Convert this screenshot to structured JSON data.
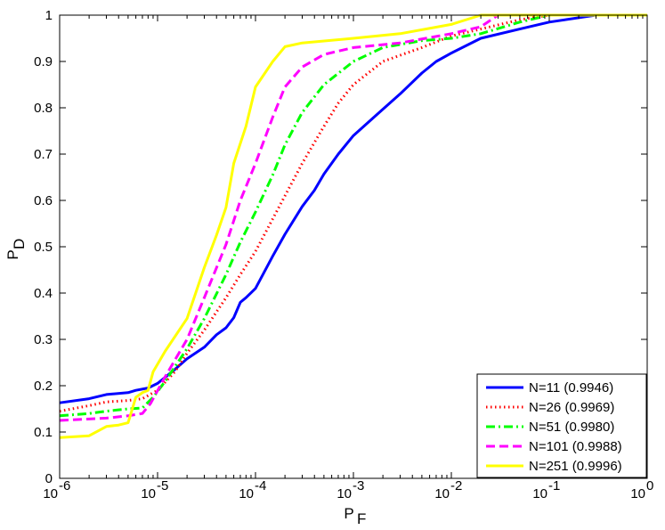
{
  "chart_data": {
    "type": "line",
    "title": "",
    "xlabel": {
      "main": "P",
      "sub": "F"
    },
    "ylabel": {
      "main": "P",
      "sub": "D"
    },
    "xscale": "log",
    "xlim": [
      1e-06,
      1
    ],
    "ylim": [
      0,
      1
    ],
    "grid": false,
    "legend_position": "bottom-right",
    "x_ticks": [
      {
        "value": 1e-06,
        "base": "10",
        "exp": "-6"
      },
      {
        "value": 1e-05,
        "base": "10",
        "exp": "-5"
      },
      {
        "value": 0.0001,
        "base": "10",
        "exp": "-4"
      },
      {
        "value": 0.001,
        "base": "10",
        "exp": "-3"
      },
      {
        "value": 0.01,
        "base": "10",
        "exp": "-2"
      },
      {
        "value": 0.1,
        "base": "10",
        "exp": "-1"
      },
      {
        "value": 1,
        "base": "10",
        "exp": "0"
      }
    ],
    "y_ticks": [
      "0",
      "0.1",
      "0.2",
      "0.3",
      "0.4",
      "0.5",
      "0.6",
      "0.7",
      "0.8",
      "0.9",
      "1"
    ],
    "series": [
      {
        "name": "N=11 (0.9946)",
        "color": "#0000ff",
        "dash": "solid",
        "points": [
          [
            1e-06,
            0.163
          ],
          [
            2e-06,
            0.172
          ],
          [
            3e-06,
            0.181
          ],
          [
            5e-06,
            0.185
          ],
          [
            6e-06,
            0.19
          ],
          [
            8e-06,
            0.195
          ],
          [
            1e-05,
            0.205
          ],
          [
            1.5e-05,
            0.235
          ],
          [
            2e-05,
            0.258
          ],
          [
            3e-05,
            0.283
          ],
          [
            4e-05,
            0.31
          ],
          [
            5e-05,
            0.325
          ],
          [
            6e-05,
            0.347
          ],
          [
            7e-05,
            0.38
          ],
          [
            8e-05,
            0.39
          ],
          [
            0.0001,
            0.41
          ],
          [
            0.00015,
            0.48
          ],
          [
            0.0002,
            0.527
          ],
          [
            0.0003,
            0.587
          ],
          [
            0.0004,
            0.622
          ],
          [
            0.0005,
            0.657
          ],
          [
            0.0007,
            0.7
          ],
          [
            0.001,
            0.74
          ],
          [
            0.002,
            0.797
          ],
          [
            0.003,
            0.83
          ],
          [
            0.005,
            0.875
          ],
          [
            0.007,
            0.9
          ],
          [
            0.01,
            0.918
          ],
          [
            0.02,
            0.95
          ],
          [
            0.05,
            0.97
          ],
          [
            0.1,
            0.985
          ],
          [
            0.3,
            1.0
          ],
          [
            1,
            1.0
          ]
        ]
      },
      {
        "name": "N=26 (0.9969)",
        "color": "#ff0000",
        "dash": "dotted",
        "points": [
          [
            1e-06,
            0.145
          ],
          [
            2e-06,
            0.157
          ],
          [
            3e-06,
            0.165
          ],
          [
            5e-06,
            0.168
          ],
          [
            7e-06,
            0.172
          ],
          [
            1e-05,
            0.19
          ],
          [
            1.5e-05,
            0.23
          ],
          [
            2e-05,
            0.27
          ],
          [
            3e-05,
            0.32
          ],
          [
            5e-05,
            0.39
          ],
          [
            7e-05,
            0.44
          ],
          [
            0.0001,
            0.49
          ],
          [
            0.0002,
            0.61
          ],
          [
            0.0003,
            0.68
          ],
          [
            0.0005,
            0.76
          ],
          [
            0.0007,
            0.81
          ],
          [
            0.001,
            0.85
          ],
          [
            0.002,
            0.9
          ],
          [
            0.005,
            0.93
          ],
          [
            0.01,
            0.955
          ],
          [
            0.02,
            0.97
          ],
          [
            0.05,
            0.99
          ],
          [
            0.1,
            1.0
          ],
          [
            1,
            1.0
          ]
        ]
      },
      {
        "name": "N=51 (0.9980)",
        "color": "#00ff00",
        "dash": "dashdot",
        "points": [
          [
            1e-06,
            0.135
          ],
          [
            2e-06,
            0.14
          ],
          [
            3e-06,
            0.145
          ],
          [
            5e-06,
            0.15
          ],
          [
            7e-06,
            0.152
          ],
          [
            9e-06,
            0.175
          ],
          [
            1.2e-05,
            0.21
          ],
          [
            2e-05,
            0.28
          ],
          [
            3e-05,
            0.345
          ],
          [
            5e-05,
            0.44
          ],
          [
            7e-05,
            0.51
          ],
          [
            0.0001,
            0.575
          ],
          [
            0.00015,
            0.655
          ],
          [
            0.0002,
            0.72
          ],
          [
            0.0003,
            0.79
          ],
          [
            0.0005,
            0.85
          ],
          [
            0.001,
            0.9
          ],
          [
            0.002,
            0.93
          ],
          [
            0.005,
            0.945
          ],
          [
            0.01,
            0.95
          ],
          [
            0.02,
            0.96
          ],
          [
            0.05,
            0.985
          ],
          [
            0.1,
            1.0
          ],
          [
            1,
            1.0
          ]
        ]
      },
      {
        "name": "N=101 (0.9988)",
        "color": "#ff00ff",
        "dash": "dashed",
        "points": [
          [
            1e-06,
            0.125
          ],
          [
            2e-06,
            0.128
          ],
          [
            3e-06,
            0.13
          ],
          [
            5e-06,
            0.135
          ],
          [
            7e-06,
            0.14
          ],
          [
            8.5e-06,
            0.162
          ],
          [
            1.2e-05,
            0.22
          ],
          [
            2e-05,
            0.3
          ],
          [
            3e-05,
            0.39
          ],
          [
            5e-05,
            0.505
          ],
          [
            7e-05,
            0.6
          ],
          [
            0.0001,
            0.68
          ],
          [
            0.00015,
            0.78
          ],
          [
            0.0002,
            0.845
          ],
          [
            0.0003,
            0.888
          ],
          [
            0.0005,
            0.915
          ],
          [
            0.001,
            0.93
          ],
          [
            0.003,
            0.94
          ],
          [
            0.01,
            0.96
          ],
          [
            0.02,
            0.975
          ],
          [
            0.03,
            1.0
          ],
          [
            1,
            1.0
          ]
        ]
      },
      {
        "name": "N=251 (0.9996)",
        "color": "#ffff00",
        "dash": "solid",
        "points": [
          [
            1e-06,
            0.088
          ],
          [
            2e-06,
            0.092
          ],
          [
            3e-06,
            0.112
          ],
          [
            4e-06,
            0.115
          ],
          [
            5e-06,
            0.12
          ],
          [
            6e-06,
            0.175
          ],
          [
            7e-06,
            0.185
          ],
          [
            8e-06,
            0.19
          ],
          [
            9e-06,
            0.23
          ],
          [
            1.2e-05,
            0.275
          ],
          [
            2e-05,
            0.345
          ],
          [
            3e-05,
            0.455
          ],
          [
            4e-05,
            0.525
          ],
          [
            5e-05,
            0.585
          ],
          [
            6e-05,
            0.68
          ],
          [
            8e-05,
            0.76
          ],
          [
            0.0001,
            0.845
          ],
          [
            0.00015,
            0.9
          ],
          [
            0.0002,
            0.932
          ],
          [
            0.0003,
            0.94
          ],
          [
            0.001,
            0.95
          ],
          [
            0.003,
            0.96
          ],
          [
            0.01,
            0.98
          ],
          [
            0.02,
            1.0
          ],
          [
            1,
            1.0
          ]
        ]
      }
    ]
  }
}
